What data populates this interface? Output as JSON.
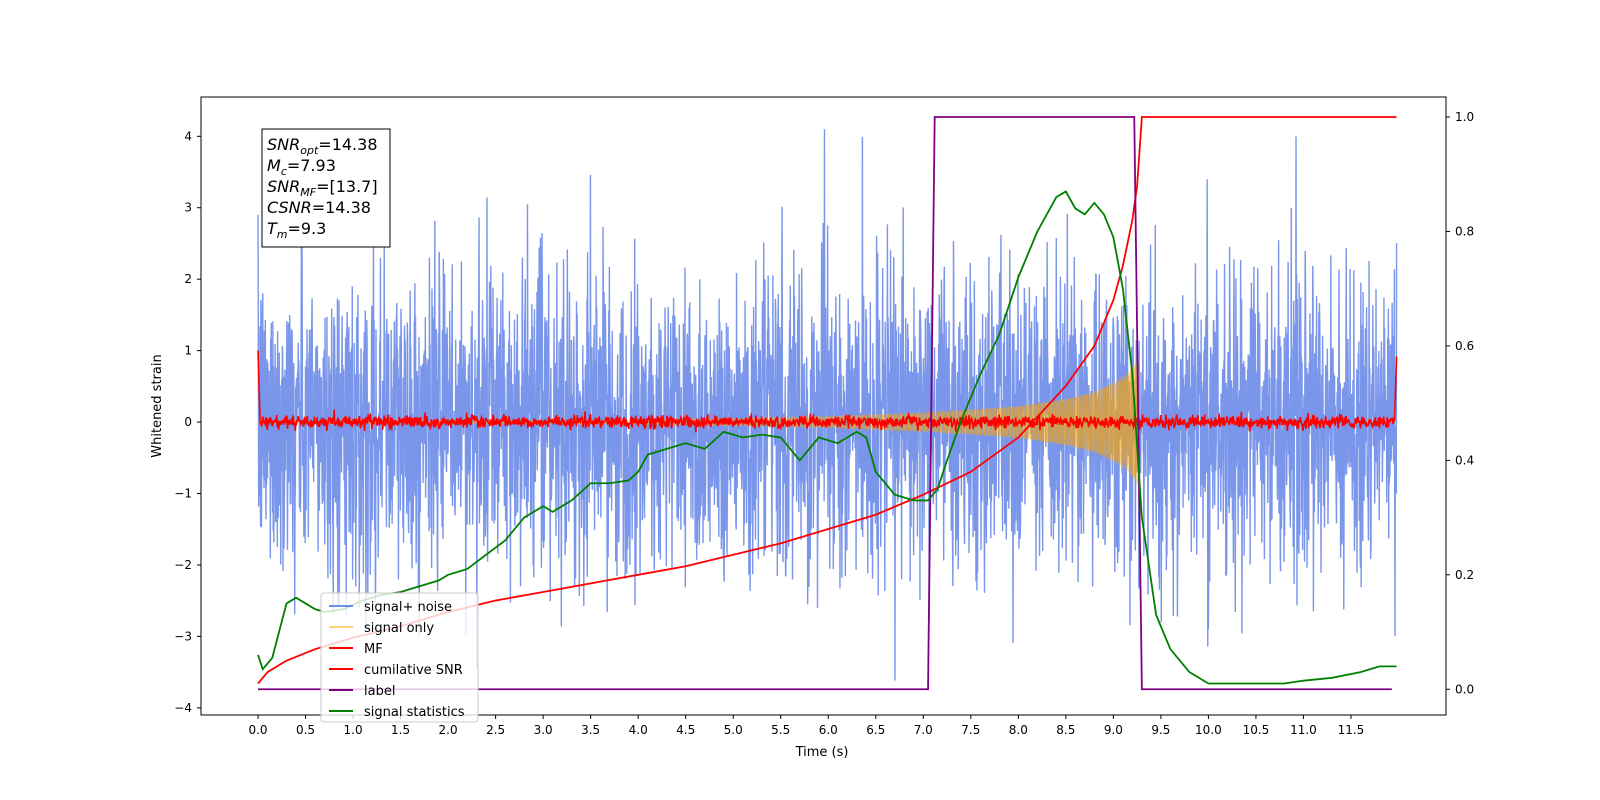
{
  "chart_data": {
    "type": "line",
    "title": "",
    "xlabel": "Time (s)",
    "ylabel": "Whitened strain",
    "xlim": [
      -0.6,
      12.5
    ],
    "ylim": [
      -4.1,
      4.55
    ],
    "y2lim": [
      -0.045,
      1.035
    ],
    "x_ticks": [
      "0.0",
      "0.5",
      "1.0",
      "1.5",
      "2.0",
      "2.5",
      "3.0",
      "3.5",
      "4.0",
      "4.5",
      "5.0",
      "5.5",
      "6.0",
      "6.5",
      "7.0",
      "7.5",
      "8.0",
      "8.5",
      "9.0",
      "9.5",
      "10.0",
      "10.5",
      "11.0",
      "11.5"
    ],
    "y_ticks": [
      "4",
      "3",
      "2",
      "1",
      "0",
      "−1",
      "−2",
      "−3",
      "−4"
    ],
    "y2_ticks": [
      "1.0",
      "0.8",
      "0.6",
      "0.4",
      "0.2",
      "0.0"
    ],
    "annotation": {
      "lines": [
        {
          "base": "SNR",
          "sub": "opt",
          "value": "=14.38"
        },
        {
          "base": "M",
          "sub": "c",
          "value": "=7.93"
        },
        {
          "base": "SNR",
          "sub": "MF",
          "value": "=[13.7]"
        },
        {
          "base": "CSNR",
          "sub": "",
          "value": "=14.38"
        },
        {
          "base": "T",
          "sub": "m",
          "value": "=9.3"
        }
      ]
    },
    "legend": {
      "position": "lower-left",
      "entries": [
        {
          "label": "signal+ noise",
          "color": "#4169e1"
        },
        {
          "label": "signal only",
          "color": "#ffa500"
        },
        {
          "label": "MF",
          "color": "#ff0000"
        },
        {
          "label": "cumilative SNR",
          "color": "#ff0000"
        },
        {
          "label": "label",
          "color": "#800080"
        },
        {
          "label": "signal statistics",
          "color": "#008000"
        }
      ]
    },
    "series": [
      {
        "name": "signal+ noise",
        "axis": "left",
        "color": "#4169e1",
        "opacity": 0.7,
        "style": "noise",
        "x_range": [
          0,
          11.98
        ],
        "amplitude_typical": 2.3,
        "amplitude_peak": 4.2
      },
      {
        "name": "signal only",
        "axis": "left",
        "color": "#ffa500",
        "opacity": 0.45,
        "style": "chirp",
        "x_range": [
          0,
          9.27
        ],
        "envelope": [
          [
            0,
            0.01
          ],
          [
            2,
            0.02
          ],
          [
            4,
            0.03
          ],
          [
            5,
            0.05
          ],
          [
            6,
            0.08
          ],
          [
            7,
            0.13
          ],
          [
            7.5,
            0.17
          ],
          [
            8,
            0.22
          ],
          [
            8.5,
            0.32
          ],
          [
            8.8,
            0.42
          ],
          [
            9,
            0.55
          ],
          [
            9.15,
            0.68
          ],
          [
            9.25,
            0.85
          ],
          [
            9.27,
            0.95
          ]
        ]
      },
      {
        "name": "MF",
        "axis": "left",
        "color": "#ff0000",
        "style": "mf",
        "x_range": [
          0,
          11.98
        ],
        "noise_amplitude": 0.08,
        "edge_values": [
          1.0,
          0.92
        ]
      },
      {
        "name": "cumilative SNR",
        "axis": "right",
        "color": "#ff0000",
        "points": [
          [
            0,
            0.01
          ],
          [
            0.1,
            0.03
          ],
          [
            0.3,
            0.05
          ],
          [
            0.6,
            0.07
          ],
          [
            1,
            0.09
          ],
          [
            1.5,
            0.11
          ],
          [
            2,
            0.135
          ],
          [
            2.5,
            0.155
          ],
          [
            3,
            0.17
          ],
          [
            3.5,
            0.185
          ],
          [
            4,
            0.2
          ],
          [
            4.5,
            0.215
          ],
          [
            5,
            0.235
          ],
          [
            5.5,
            0.255
          ],
          [
            6,
            0.28
          ],
          [
            6.5,
            0.305
          ],
          [
            7,
            0.34
          ],
          [
            7.5,
            0.38
          ],
          [
            8,
            0.44
          ],
          [
            8.5,
            0.53
          ],
          [
            8.8,
            0.6
          ],
          [
            9,
            0.68
          ],
          [
            9.1,
            0.74
          ],
          [
            9.2,
            0.82
          ],
          [
            9.25,
            0.88
          ],
          [
            9.3,
            1.0
          ],
          [
            11.98,
            1.0
          ]
        ]
      },
      {
        "name": "label",
        "axis": "right",
        "color": "#800080",
        "points": [
          [
            0,
            0
          ],
          [
            7.05,
            0
          ],
          [
            7.12,
            1
          ],
          [
            9.22,
            1
          ],
          [
            9.3,
            0
          ],
          [
            11.93,
            0
          ]
        ]
      },
      {
        "name": "signal statistics",
        "axis": "right",
        "color": "#008000",
        "points": [
          [
            0,
            0.06
          ],
          [
            0.05,
            0.035
          ],
          [
            0.15,
            0.055
          ],
          [
            0.3,
            0.15
          ],
          [
            0.4,
            0.16
          ],
          [
            0.5,
            0.15
          ],
          [
            0.6,
            0.14
          ],
          [
            0.7,
            0.135
          ],
          [
            0.9,
            0.14
          ],
          [
            1.1,
            0.155
          ],
          [
            1.3,
            0.165
          ],
          [
            1.5,
            0.17
          ],
          [
            1.7,
            0.18
          ],
          [
            1.9,
            0.19
          ],
          [
            2.0,
            0.2
          ],
          [
            2.2,
            0.21
          ],
          [
            2.4,
            0.235
          ],
          [
            2.6,
            0.26
          ],
          [
            2.8,
            0.3
          ],
          [
            3.0,
            0.32
          ],
          [
            3.1,
            0.31
          ],
          [
            3.3,
            0.33
          ],
          [
            3.5,
            0.36
          ],
          [
            3.7,
            0.36
          ],
          [
            3.9,
            0.365
          ],
          [
            4.0,
            0.38
          ],
          [
            4.1,
            0.41
          ],
          [
            4.3,
            0.42
          ],
          [
            4.5,
            0.43
          ],
          [
            4.7,
            0.42
          ],
          [
            4.9,
            0.45
          ],
          [
            5.1,
            0.44
          ],
          [
            5.3,
            0.445
          ],
          [
            5.5,
            0.44
          ],
          [
            5.7,
            0.4
          ],
          [
            5.9,
            0.44
          ],
          [
            6.1,
            0.43
          ],
          [
            6.3,
            0.45
          ],
          [
            6.4,
            0.44
          ],
          [
            6.5,
            0.38
          ],
          [
            6.7,
            0.34
          ],
          [
            6.9,
            0.33
          ],
          [
            7.05,
            0.33
          ],
          [
            7.15,
            0.35
          ],
          [
            7.25,
            0.4
          ],
          [
            7.4,
            0.47
          ],
          [
            7.6,
            0.55
          ],
          [
            7.8,
            0.62
          ],
          [
            8.0,
            0.72
          ],
          [
            8.2,
            0.8
          ],
          [
            8.4,
            0.86
          ],
          [
            8.5,
            0.87
          ],
          [
            8.6,
            0.84
          ],
          [
            8.7,
            0.83
          ],
          [
            8.8,
            0.85
          ],
          [
            8.9,
            0.83
          ],
          [
            9.0,
            0.79
          ],
          [
            9.1,
            0.7
          ],
          [
            9.2,
            0.55
          ],
          [
            9.3,
            0.3
          ],
          [
            9.45,
            0.13
          ],
          [
            9.6,
            0.07
          ],
          [
            9.8,
            0.03
          ],
          [
            10.0,
            0.01
          ],
          [
            10.5,
            0.01
          ],
          [
            10.8,
            0.01
          ],
          [
            11.0,
            0.015
          ],
          [
            11.3,
            0.02
          ],
          [
            11.6,
            0.03
          ],
          [
            11.8,
            0.04
          ],
          [
            11.98,
            0.04
          ]
        ]
      }
    ]
  }
}
